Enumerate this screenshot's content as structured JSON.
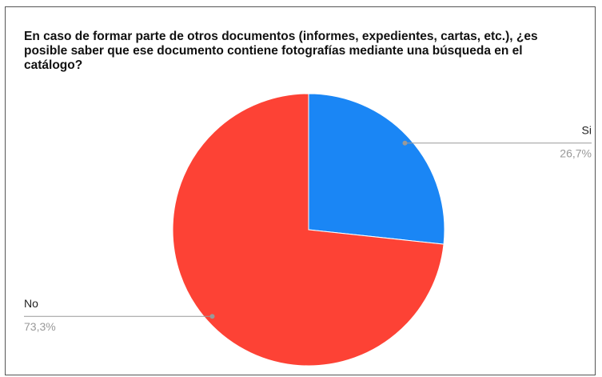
{
  "chart_data": {
    "type": "pie",
    "title": "En caso de formar parte de otros documentos (informes, expedientes, cartas, etc.), ¿es posible saber que ese documento contiene fotografías mediante una búsqueda en el catálogo?",
    "categories": [
      "Si",
      "No"
    ],
    "values": [
      26.7,
      73.3
    ],
    "value_labels": [
      "26,7%",
      "73,3%"
    ],
    "colors": [
      "#1a86f5",
      "#fd4235"
    ]
  }
}
